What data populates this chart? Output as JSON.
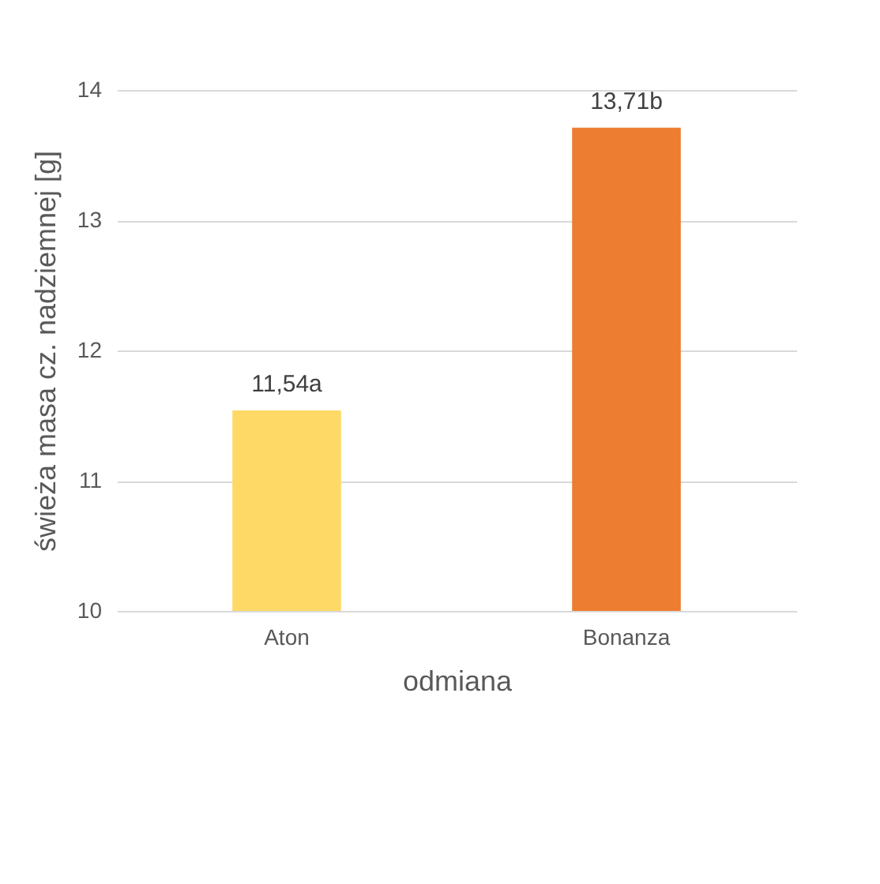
{
  "chart_data": {
    "type": "bar",
    "xlabel": "odmiana",
    "ylabel": "świeża masa cz. nadziemnej [g]",
    "categories": [
      "Aton",
      "Bonanza"
    ],
    "values": [
      11.54,
      13.71
    ],
    "colors": [
      "#ffd966",
      "#ed7d31"
    ],
    "value_labels": [
      "11,54a",
      "13,71b"
    ],
    "ylim": [
      10,
      14
    ],
    "yticks": [
      10,
      11,
      12,
      13,
      14
    ],
    "grid": "y",
    "legend": false
  }
}
